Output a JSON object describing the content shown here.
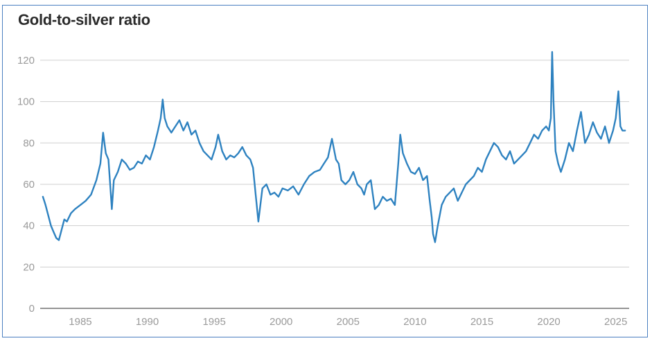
{
  "chart_data": {
    "type": "line",
    "title": "Gold-to-silver ratio",
    "xlabel": "",
    "ylabel": "",
    "xlim": [
      1982,
      2026
    ],
    "ylim": [
      0,
      125
    ],
    "yticks": [
      0,
      20,
      40,
      60,
      80,
      100,
      120
    ],
    "xticks": [
      1985,
      1990,
      1995,
      2000,
      2005,
      2010,
      2015,
      2020,
      2025
    ],
    "grid": "horizontal",
    "legend": "none",
    "color": "#2e82c0",
    "series": [
      {
        "x": [
          1982.2,
          1982.4,
          1982.6,
          1982.8,
          1983.0,
          1983.2,
          1983.4,
          1983.6,
          1983.8,
          1984.0,
          1984.3,
          1984.6,
          1985.0,
          1985.4,
          1985.8,
          1986.2,
          1986.5,
          1986.7,
          1986.9,
          1987.1,
          1987.25,
          1987.35,
          1987.5,
          1987.8,
          1988.1,
          1988.4,
          1988.7,
          1989.0,
          1989.3,
          1989.6,
          1989.9,
          1990.2,
          1990.5,
          1990.8,
          1991.0,
          1991.15,
          1991.3,
          1991.5,
          1991.8,
          1992.1,
          1992.4,
          1992.7,
          1993.0,
          1993.3,
          1993.6,
          1993.9,
          1994.2,
          1994.5,
          1994.8,
          1995.1,
          1995.3,
          1995.6,
          1995.9,
          1996.2,
          1996.5,
          1996.8,
          1997.1,
          1997.4,
          1997.7,
          1997.9,
          1998.1,
          1998.3,
          1998.6,
          1998.9,
          1999.2,
          1999.5,
          1999.8,
          2000.1,
          2000.5,
          2000.9,
          2001.3,
          2001.7,
          2002.1,
          2002.5,
          2002.9,
          2003.2,
          2003.5,
          2003.8,
          2004.1,
          2004.3,
          2004.5,
          2004.8,
          2005.1,
          2005.4,
          2005.7,
          2006.0,
          2006.2,
          2006.4,
          2006.7,
          2007.0,
          2007.3,
          2007.6,
          2007.9,
          2008.2,
          2008.5,
          2008.75,
          2008.9,
          2009.1,
          2009.4,
          2009.7,
          2010.0,
          2010.3,
          2010.6,
          2010.9,
          2011.1,
          2011.25,
          2011.35,
          2011.5,
          2011.7,
          2012.0,
          2012.3,
          2012.6,
          2012.9,
          2013.2,
          2013.5,
          2013.8,
          2014.1,
          2014.4,
          2014.7,
          2015.0,
          2015.3,
          2015.6,
          2015.9,
          2016.2,
          2016.5,
          2016.8,
          2017.1,
          2017.4,
          2017.7,
          2018.0,
          2018.3,
          2018.6,
          2018.9,
          2019.2,
          2019.5,
          2019.8,
          2020.0,
          2020.15,
          2020.25,
          2020.35,
          2020.5,
          2020.7,
          2020.9,
          2021.2,
          2021.5,
          2021.8,
          2022.1,
          2022.4,
          2022.7,
          2023.0,
          2023.3,
          2023.6,
          2023.9,
          2024.2,
          2024.5,
          2024.8,
          2025.0,
          2025.2,
          2025.35,
          2025.5,
          2025.7
        ],
        "y": [
          54,
          50,
          45,
          40,
          37,
          34,
          33,
          38,
          43,
          42,
          46,
          48,
          50,
          52,
          55,
          62,
          70,
          85,
          75,
          72,
          58,
          48,
          62,
          66,
          72,
          70,
          67,
          68,
          71,
          70,
          74,
          72,
          78,
          86,
          92,
          101,
          92,
          88,
          85,
          88,
          91,
          86,
          90,
          84,
          86,
          80,
          76,
          74,
          72,
          78,
          84,
          76,
          72,
          74,
          73,
          75,
          78,
          74,
          72,
          68,
          55,
          42,
          58,
          60,
          55,
          56,
          54,
          58,
          57,
          59,
          55,
          60,
          64,
          66,
          67,
          70,
          73,
          82,
          72,
          70,
          62,
          60,
          62,
          66,
          60,
          58,
          55,
          60,
          62,
          48,
          50,
          54,
          52,
          53,
          50,
          70,
          84,
          75,
          70,
          66,
          65,
          68,
          62,
          64,
          52,
          44,
          36,
          32,
          40,
          50,
          54,
          56,
          58,
          52,
          56,
          60,
          62,
          64,
          68,
          66,
          72,
          76,
          80,
          78,
          74,
          72,
          76,
          70,
          72,
          74,
          76,
          80,
          84,
          82,
          86,
          88,
          86,
          92,
          124,
          100,
          76,
          70,
          66,
          72,
          80,
          76,
          86,
          95,
          80,
          84,
          90,
          85,
          82,
          88,
          80,
          86,
          92,
          105,
          88,
          86,
          86
        ]
      }
    ]
  }
}
